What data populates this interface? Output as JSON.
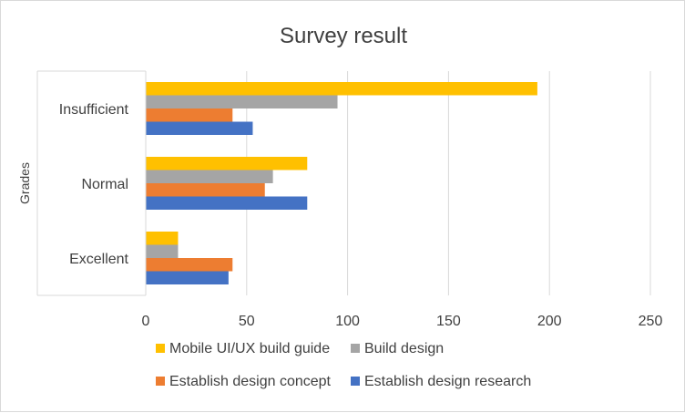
{
  "chart_data": {
    "type": "bar",
    "orientation": "horizontal",
    "title": "Survey result",
    "xlabel": "",
    "ylabel": "Grades",
    "categories": [
      "Insufficient",
      "Normal",
      "Excellent"
    ],
    "series": [
      {
        "name": "Mobile UI/UX build guide",
        "color": "#FFC000",
        "values": [
          194,
          80,
          16
        ]
      },
      {
        "name": "Build design",
        "color": "#A5A5A5",
        "values": [
          95,
          63,
          16
        ]
      },
      {
        "name": "Establish design concept",
        "color": "#ED7D31",
        "values": [
          43,
          59,
          43
        ]
      },
      {
        "name": "Establish design research",
        "color": "#4472C4",
        "values": [
          53,
          80,
          41
        ]
      }
    ],
    "xlim": [
      0,
      250
    ],
    "xticks": [
      0,
      50,
      100,
      150,
      200,
      250
    ],
    "grid": true,
    "legend_position": "bottom"
  }
}
